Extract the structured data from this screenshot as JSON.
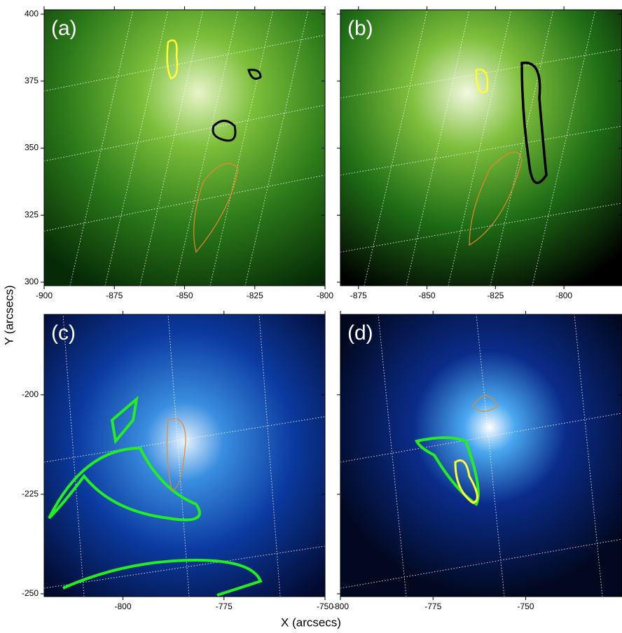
{
  "xlabel": "X (arcsecs)",
  "ylabel": "Y (arcsecs)",
  "chart_data": [
    {
      "type": "image",
      "label": "(a)",
      "xlim": [
        -900,
        -800
      ],
      "ylim": [
        298.7,
        401.6
      ],
      "xticks": [
        -900,
        -875,
        -850,
        -825,
        -800
      ],
      "yticks": [
        300,
        325,
        350,
        375,
        400
      ]
    },
    {
      "type": "image",
      "label": "(b)",
      "xlim": [
        -881.6,
        -778.8
      ],
      "ylim": [
        298.7,
        401.6
      ],
      "xticks": [
        -875,
        -850,
        -825,
        -800
      ],
      "yticks": [
        300,
        325,
        350,
        375,
        400
      ]
    },
    {
      "type": "image",
      "label": "(c)",
      "xlim": [
        -819.5,
        -750
      ],
      "ylim": [
        -250.7,
        -179.8
      ],
      "xticks": [
        -800,
        -775,
        -750
      ],
      "yticks": [
        -250,
        -225,
        -200
      ]
    },
    {
      "type": "image",
      "label": "(d)",
      "xlim": [
        -800,
        -724
      ],
      "ylim": [
        -250.7,
        -179.8
      ],
      "xticks": [
        -800,
        -775,
        -750
      ],
      "yticks": [
        -250,
        -225,
        -200
      ]
    }
  ]
}
